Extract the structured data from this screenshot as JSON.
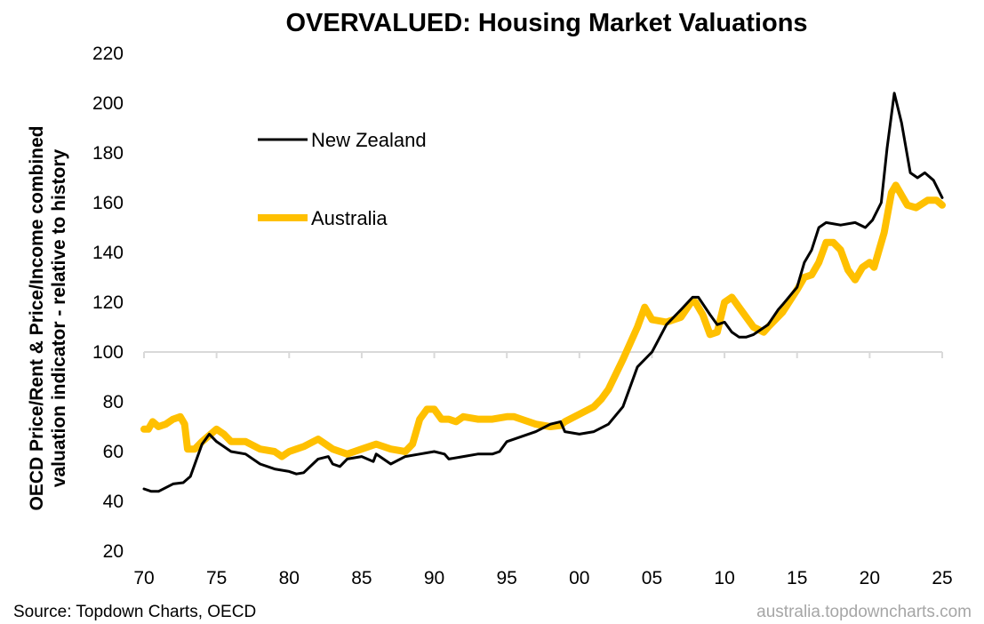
{
  "chart_data": {
    "type": "line",
    "title": "OVERVALUED: Housing Market Valuations",
    "ylabel": [
      "OECD Price/Rent & Price/Income combined",
      "valuation indicator - relative to history"
    ],
    "xlabel": "",
    "ylim": [
      20,
      220
    ],
    "yticks": [
      20,
      40,
      60,
      80,
      100,
      120,
      140,
      160,
      180,
      200,
      220
    ],
    "xlim": [
      1970,
      2025
    ],
    "xticks": [
      1970,
      1975,
      1980,
      1985,
      1990,
      1995,
      2000,
      2005,
      2010,
      2015,
      2020,
      2025
    ],
    "xtick_labels": [
      "70",
      "75",
      "80",
      "85",
      "90",
      "95",
      "00",
      "05",
      "10",
      "15",
      "20",
      "25"
    ],
    "axis_crosses_at": 100,
    "legend_placement": "top-left",
    "series": [
      {
        "name": "New Zealand",
        "color": "#000000",
        "points": [
          [
            1970,
            45
          ],
          [
            1970.5,
            44
          ],
          [
            1971,
            44
          ],
          [
            1972,
            47
          ],
          [
            1972.7,
            47.5
          ],
          [
            1973.2,
            50
          ],
          [
            1974,
            63
          ],
          [
            1974.5,
            67
          ],
          [
            1975,
            64
          ],
          [
            1976,
            60
          ],
          [
            1977,
            59
          ],
          [
            1978,
            55
          ],
          [
            1979,
            53
          ],
          [
            1980,
            52
          ],
          [
            1980.5,
            51
          ],
          [
            1981,
            51.5
          ],
          [
            1982,
            57
          ],
          [
            1982.7,
            58
          ],
          [
            1983,
            55
          ],
          [
            1983.5,
            54
          ],
          [
            1984,
            57
          ],
          [
            1985,
            58
          ],
          [
            1985.8,
            56
          ],
          [
            1986,
            59
          ],
          [
            1986.5,
            57
          ],
          [
            1987,
            55
          ],
          [
            1988,
            58
          ],
          [
            1989,
            59
          ],
          [
            1990,
            60
          ],
          [
            1990.7,
            59
          ],
          [
            1991,
            57
          ],
          [
            1992,
            58
          ],
          [
            1993,
            59
          ],
          [
            1994,
            59
          ],
          [
            1994.5,
            60
          ],
          [
            1995,
            64
          ],
          [
            1996,
            66
          ],
          [
            1997,
            68
          ],
          [
            1998,
            71
          ],
          [
            1998.7,
            72
          ],
          [
            1999,
            68
          ],
          [
            2000,
            67
          ],
          [
            2001,
            68
          ],
          [
            2002,
            71
          ],
          [
            2003,
            78
          ],
          [
            2004,
            94
          ],
          [
            2005,
            100
          ],
          [
            2006,
            111
          ],
          [
            2007,
            117
          ],
          [
            2007.8,
            122
          ],
          [
            2008.2,
            122
          ],
          [
            2009,
            115
          ],
          [
            2009.5,
            111
          ],
          [
            2010,
            112
          ],
          [
            2010.5,
            108
          ],
          [
            2011,
            106
          ],
          [
            2011.5,
            106
          ],
          [
            2012,
            107
          ],
          [
            2013,
            111
          ],
          [
            2013.7,
            117
          ],
          [
            2014,
            119
          ],
          [
            2015,
            126
          ],
          [
            2015.5,
            136
          ],
          [
            2016,
            141
          ],
          [
            2016.5,
            150
          ],
          [
            2017,
            152
          ],
          [
            2018,
            151
          ],
          [
            2019,
            152
          ],
          [
            2019.7,
            150
          ],
          [
            2020.2,
            153
          ],
          [
            2020.8,
            160
          ],
          [
            2021.2,
            182
          ],
          [
            2021.7,
            204
          ],
          [
            2022.2,
            192
          ],
          [
            2022.8,
            172
          ],
          [
            2023.3,
            170
          ],
          [
            2023.8,
            172
          ],
          [
            2024.4,
            169
          ],
          [
            2025,
            162
          ]
        ]
      },
      {
        "name": "Australia",
        "color": "#FFC000",
        "points": [
          [
            1970,
            69
          ],
          [
            1970.3,
            69
          ],
          [
            1970.6,
            72
          ],
          [
            1971,
            70
          ],
          [
            1971.5,
            71
          ],
          [
            1972,
            73
          ],
          [
            1972.5,
            74
          ],
          [
            1972.8,
            71
          ],
          [
            1973,
            61
          ],
          [
            1973.5,
            61
          ],
          [
            1974,
            64
          ],
          [
            1975,
            69
          ],
          [
            1975.5,
            67
          ],
          [
            1976,
            64
          ],
          [
            1977,
            64
          ],
          [
            1978,
            61
          ],
          [
            1979,
            60
          ],
          [
            1979.5,
            58
          ],
          [
            1980,
            60
          ],
          [
            1980.5,
            61
          ],
          [
            1981,
            62
          ],
          [
            1982,
            65
          ],
          [
            1982.5,
            63
          ],
          [
            1983,
            61
          ],
          [
            1984,
            59
          ],
          [
            1984.5,
            60
          ],
          [
            1985,
            61
          ],
          [
            1986,
            63
          ],
          [
            1986.5,
            62
          ],
          [
            1987,
            61
          ],
          [
            1988,
            60
          ],
          [
            1988.5,
            63
          ],
          [
            1989,
            73
          ],
          [
            1989.5,
            77
          ],
          [
            1990,
            77
          ],
          [
            1990.5,
            73
          ],
          [
            1991,
            73
          ],
          [
            1991.5,
            72
          ],
          [
            1992,
            74
          ],
          [
            1993,
            73
          ],
          [
            1994,
            73
          ],
          [
            1995,
            74
          ],
          [
            1995.5,
            74
          ],
          [
            1996,
            73
          ],
          [
            1997,
            71
          ],
          [
            1998,
            70
          ],
          [
            1998.7,
            70.5
          ],
          [
            1999,
            72
          ],
          [
            2000,
            75
          ],
          [
            2001,
            78
          ],
          [
            2001.5,
            81
          ],
          [
            2002,
            85
          ],
          [
            2003,
            97
          ],
          [
            2004,
            110
          ],
          [
            2004.5,
            118
          ],
          [
            2005,
            113
          ],
          [
            2006,
            112
          ],
          [
            2007,
            114
          ],
          [
            2007.7,
            120
          ],
          [
            2008,
            120
          ],
          [
            2008.5,
            115
          ],
          [
            2009,
            107
          ],
          [
            2009.5,
            108
          ],
          [
            2010,
            120
          ],
          [
            2010.5,
            122
          ],
          [
            2011,
            118
          ],
          [
            2012,
            110
          ],
          [
            2012.7,
            108
          ],
          [
            2013,
            110
          ],
          [
            2014,
            116
          ],
          [
            2015,
            125
          ],
          [
            2015.5,
            130
          ],
          [
            2016,
            131
          ],
          [
            2016.5,
            136
          ],
          [
            2017,
            144
          ],
          [
            2017.5,
            144
          ],
          [
            2018,
            141
          ],
          [
            2018.5,
            133
          ],
          [
            2019,
            129
          ],
          [
            2019.5,
            134
          ],
          [
            2020,
            136
          ],
          [
            2020.3,
            134
          ],
          [
            2021,
            148
          ],
          [
            2021.5,
            164
          ],
          [
            2021.8,
            167
          ],
          [
            2022.2,
            163
          ],
          [
            2022.6,
            159
          ],
          [
            2023.2,
            158
          ],
          [
            2024,
            161
          ],
          [
            2024.6,
            161
          ],
          [
            2025,
            159
          ]
        ]
      }
    ]
  },
  "footer": {
    "source": "Source: Topdown Charts, OECD",
    "watermark": "australia.topdowncharts.com"
  }
}
